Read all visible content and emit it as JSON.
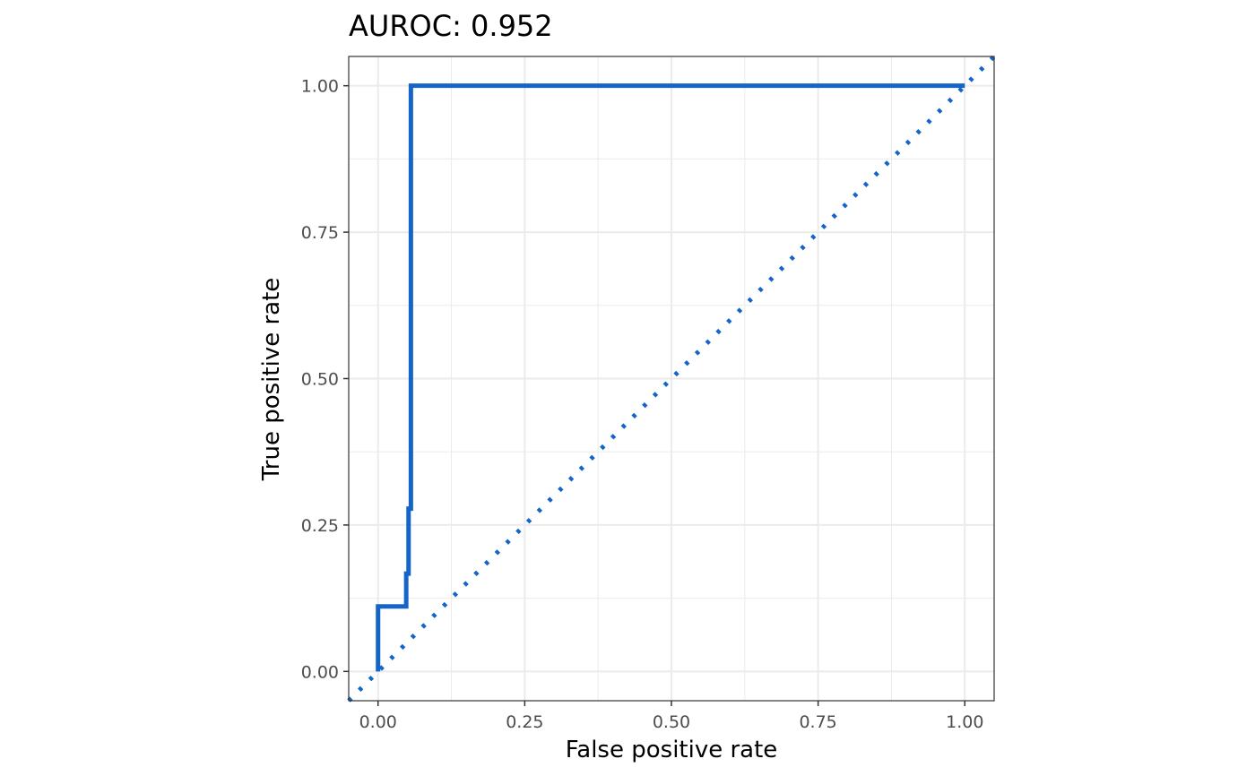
{
  "chart_data": {
    "type": "line",
    "title": "AUROC: 0.952",
    "xlabel": "False positive rate",
    "ylabel": "True positive rate",
    "xlim": [
      -0.05,
      1.05
    ],
    "ylim": [
      -0.05,
      1.05
    ],
    "x_ticks": [
      0,
      0.25,
      0.5,
      0.75,
      1
    ],
    "y_ticks": [
      0,
      0.25,
      0.5,
      0.75,
      1
    ],
    "x_tick_labels": [
      "0.00",
      "0.25",
      "0.50",
      "0.75",
      "1.00"
    ],
    "y_tick_labels": [
      "0.00",
      "0.25",
      "0.50",
      "0.75",
      "1.00"
    ],
    "grid": true,
    "series": [
      {
        "style": "solid",
        "color": "#1565C8",
        "x": [
          0,
          0,
          0.048,
          0.048,
          0.052,
          0.052,
          0.056,
          0.056,
          1.0
        ],
        "y": [
          0,
          0.111,
          0.111,
          0.167,
          0.167,
          0.278,
          0.278,
          1.0,
          1.0
        ]
      },
      {
        "style": "dotted",
        "color": "#1565C8",
        "x": [
          -0.05,
          1.05
        ],
        "y": [
          -0.05,
          1.05
        ]
      }
    ],
    "colors": {
      "line": "#1565C8",
      "grid_major": "#ebebeb",
      "grid_minor": "#f5f5f5",
      "panel_border": "#333333",
      "tick_text": "#4d4d4d"
    }
  }
}
